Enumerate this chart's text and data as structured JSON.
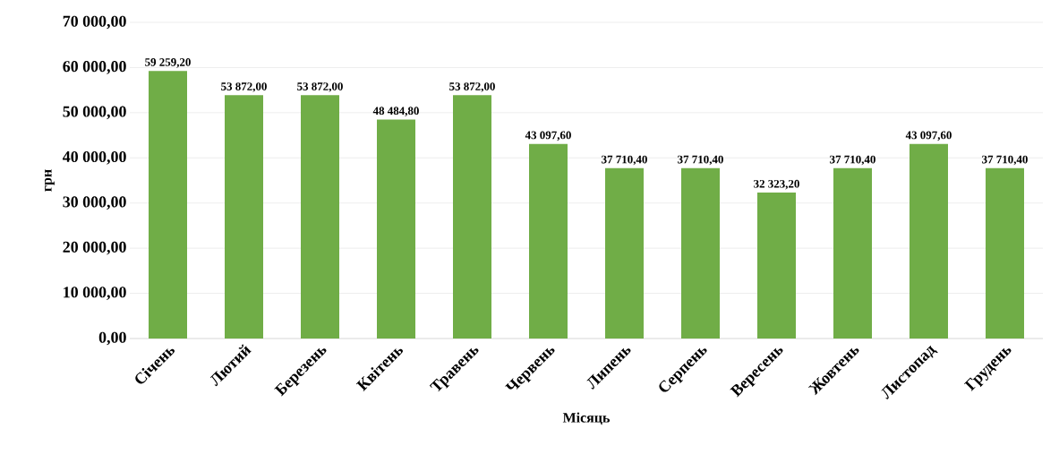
{
  "chart_data": {
    "type": "bar",
    "xlabel": "Місяць",
    "ylabel": "грн",
    "categories": [
      "Січень",
      "Лютий",
      "Березень",
      "Квітень",
      "Травень",
      "Червень",
      "Липень",
      "Серпень",
      "Вересень",
      "Жовтень",
      "Листопад",
      "Грудень"
    ],
    "values": [
      59259.2,
      53872,
      53872,
      48484.8,
      53872,
      43097.6,
      37710.4,
      37710.4,
      32323.2,
      37710.4,
      43097.6,
      37710.4
    ],
    "value_labels": [
      "59 259,20",
      "53 872,00",
      "53 872,00",
      "48 484,80",
      "53 872,00",
      "43 097,60",
      "37 710,40",
      "37 710,40",
      "32 323,20",
      "37 710,40",
      "43 097,60",
      "37 710,40"
    ],
    "color": "#70ad47",
    "ylim": [
      0,
      70000
    ],
    "yticks": [
      {
        "value": 0,
        "label": "0,00"
      },
      {
        "value": 10000,
        "label": "10 000,00"
      },
      {
        "value": 20000,
        "label": "20 000,00"
      },
      {
        "value": 30000,
        "label": "30 000,00"
      },
      {
        "value": 40000,
        "label": "40 000,00"
      },
      {
        "value": 50000,
        "label": "50 000,00"
      },
      {
        "value": 60000,
        "label": "60 000,00"
      },
      {
        "value": 70000,
        "label": "70 000,00"
      }
    ],
    "grid": "y"
  }
}
